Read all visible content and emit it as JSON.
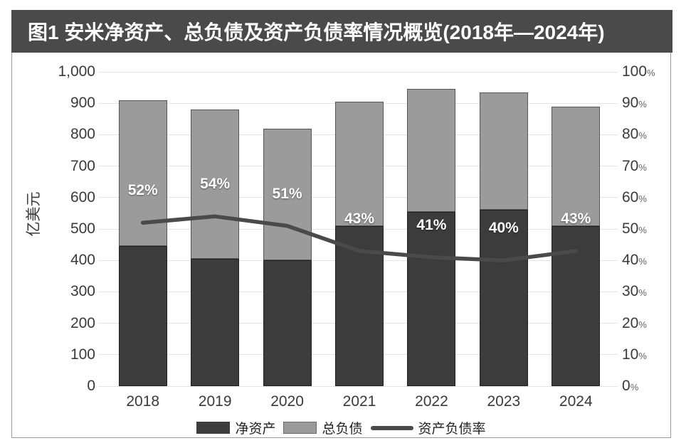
{
  "header": {
    "title": "图1 安米净资产、总负债及资产负债率情况概览(2018年—2024年)"
  },
  "colors": {
    "header_bg": "#4a4a4a",
    "net_bar": "#3c3c3c",
    "liab_bar": "#9b9b9b",
    "line": "#4a4a4a",
    "grid": "#e4e4e4",
    "axis_text": "#3a3a3a",
    "border": "#9a9a9a",
    "point_label_text": "#ffffff",
    "legend_text": "#222222"
  },
  "chart_data": {
    "type": "bar",
    "combo": "stacked-bar-with-line",
    "title": "图1 安米净资产、总负债及资产负债率情况概览(2018年—2024年)",
    "categories": [
      "2018",
      "2019",
      "2020",
      "2021",
      "2022",
      "2023",
      "2024"
    ],
    "series": [
      {
        "name": "净资产",
        "type": "bar",
        "role": "stack-bottom",
        "unit": "亿美元",
        "values": [
          445,
          405,
          400,
          510,
          555,
          560,
          510
        ]
      },
      {
        "name": "总负债",
        "type": "bar",
        "role": "stack-top",
        "unit": "亿美元",
        "values": [
          465,
          475,
          420,
          395,
          390,
          375,
          380
        ]
      },
      {
        "name": "资产负债率",
        "type": "line",
        "axis": "right",
        "unit": "%",
        "values": [
          52,
          54,
          51,
          43,
          41,
          40,
          43
        ],
        "point_labels": [
          "52%",
          "54%",
          "51%",
          "43%",
          "41%",
          "40%",
          "43%"
        ]
      }
    ],
    "left_axis": {
      "title": "亿美元",
      "min": 0,
      "max": 1000,
      "step": 100,
      "tick_labels": [
        "1,000",
        "900",
        "800",
        "700",
        "600",
        "500",
        "400",
        "300",
        "200",
        "100",
        "0"
      ]
    },
    "right_axis": {
      "min": 0,
      "max": 100,
      "step": 10,
      "tick_labels": [
        "100%",
        "90%",
        "80%",
        "70%",
        "60%",
        "50%",
        "40%",
        "30%",
        "20%",
        "10%",
        "0%"
      ]
    },
    "x_axis": {
      "tick_labels": [
        "2018",
        "2019",
        "2020",
        "2021",
        "2022",
        "2023",
        "2024"
      ]
    },
    "legend": {
      "position": "bottom",
      "items": [
        {
          "key": "net",
          "label": "净资产",
          "swatch": "box-dark"
        },
        {
          "key": "liabilities",
          "label": "总负债",
          "swatch": "box-gray"
        },
        {
          "key": "ratio",
          "label": "资产负债率",
          "swatch": "line"
        }
      ]
    },
    "grid": true
  }
}
